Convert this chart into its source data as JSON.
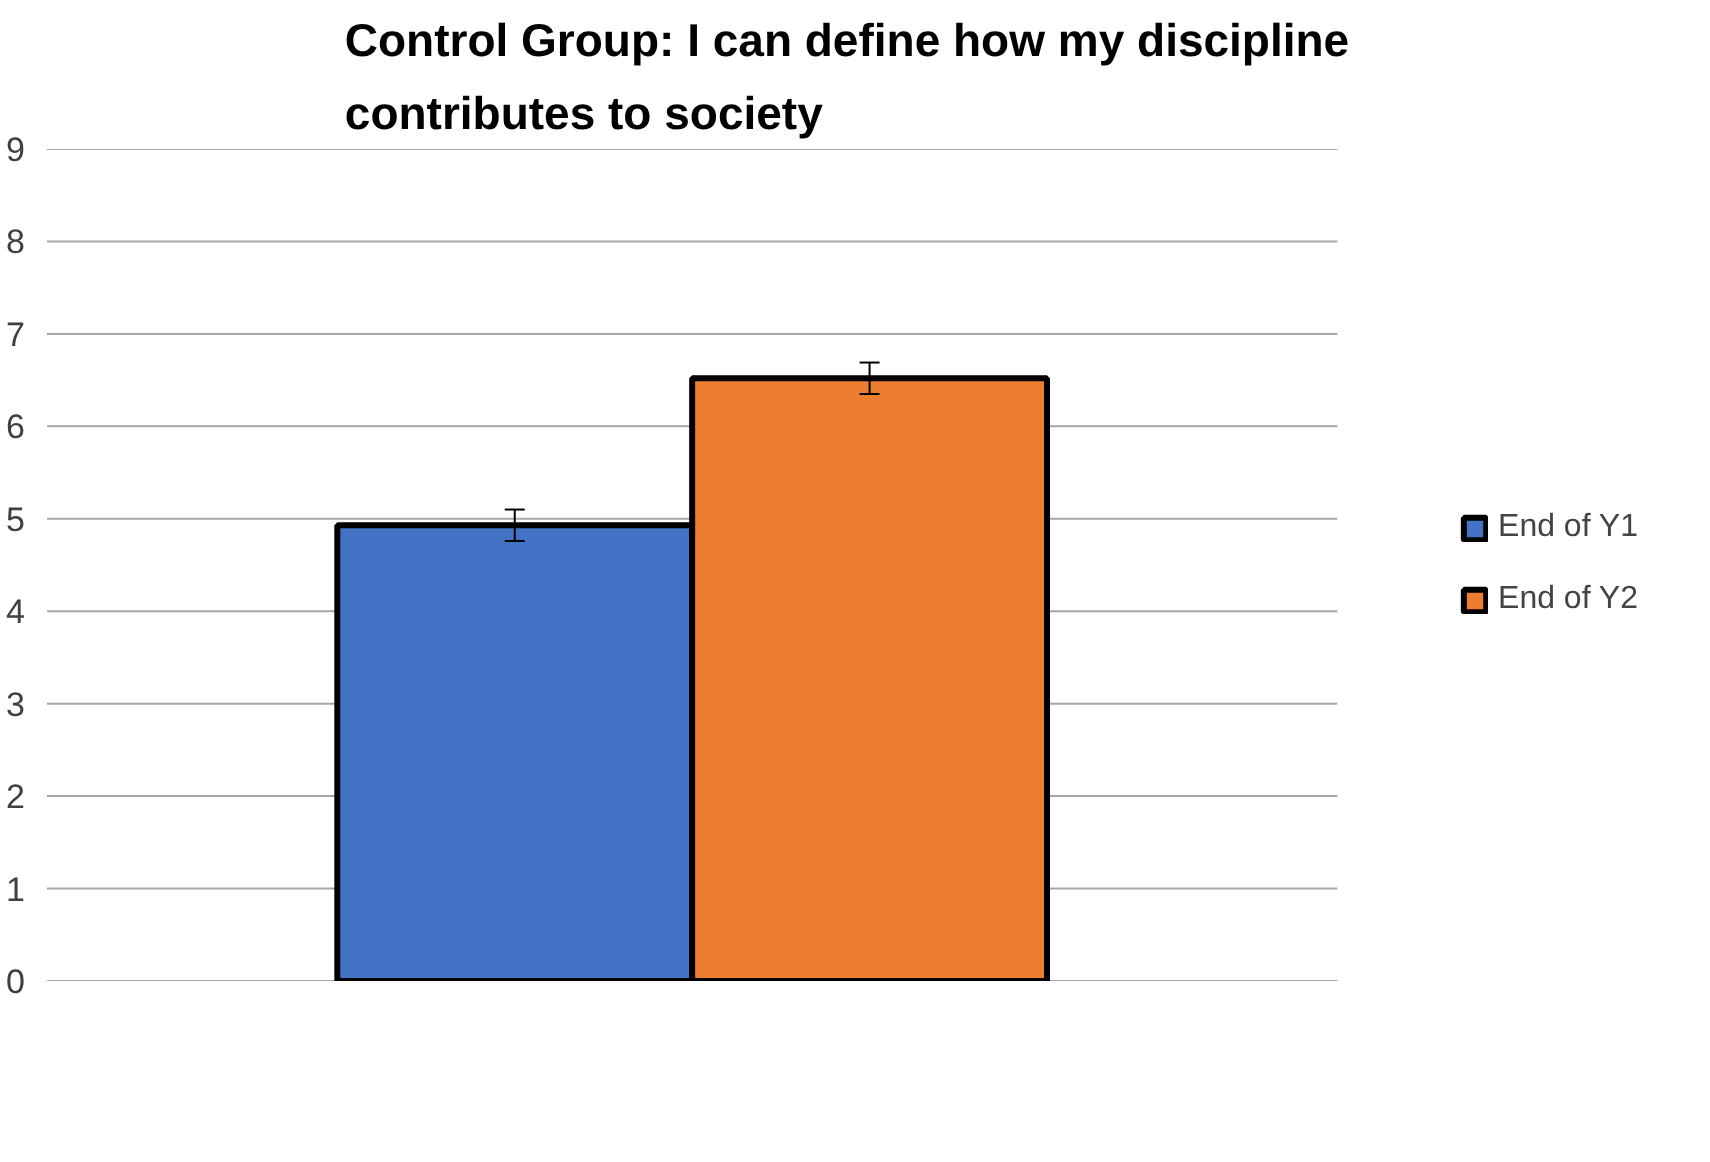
{
  "chart_data": {
    "type": "bar",
    "title": "Control Group: I can define how my discipline contributes to society",
    "categories": [
      null
    ],
    "series": [
      {
        "name": "End of Y1",
        "color": "#4472c4",
        "values": [
          4.93
        ],
        "errors": [
          0.17
        ]
      },
      {
        "name": "End of Y2",
        "color": "#ed7d31",
        "values": [
          6.52
        ],
        "errors": [
          0.17
        ]
      }
    ],
    "ylim": [
      0,
      9
    ],
    "yticks": [
      0,
      1,
      2,
      3,
      4,
      5,
      6,
      7,
      8,
      9
    ],
    "grid": "y",
    "legend": "right"
  }
}
